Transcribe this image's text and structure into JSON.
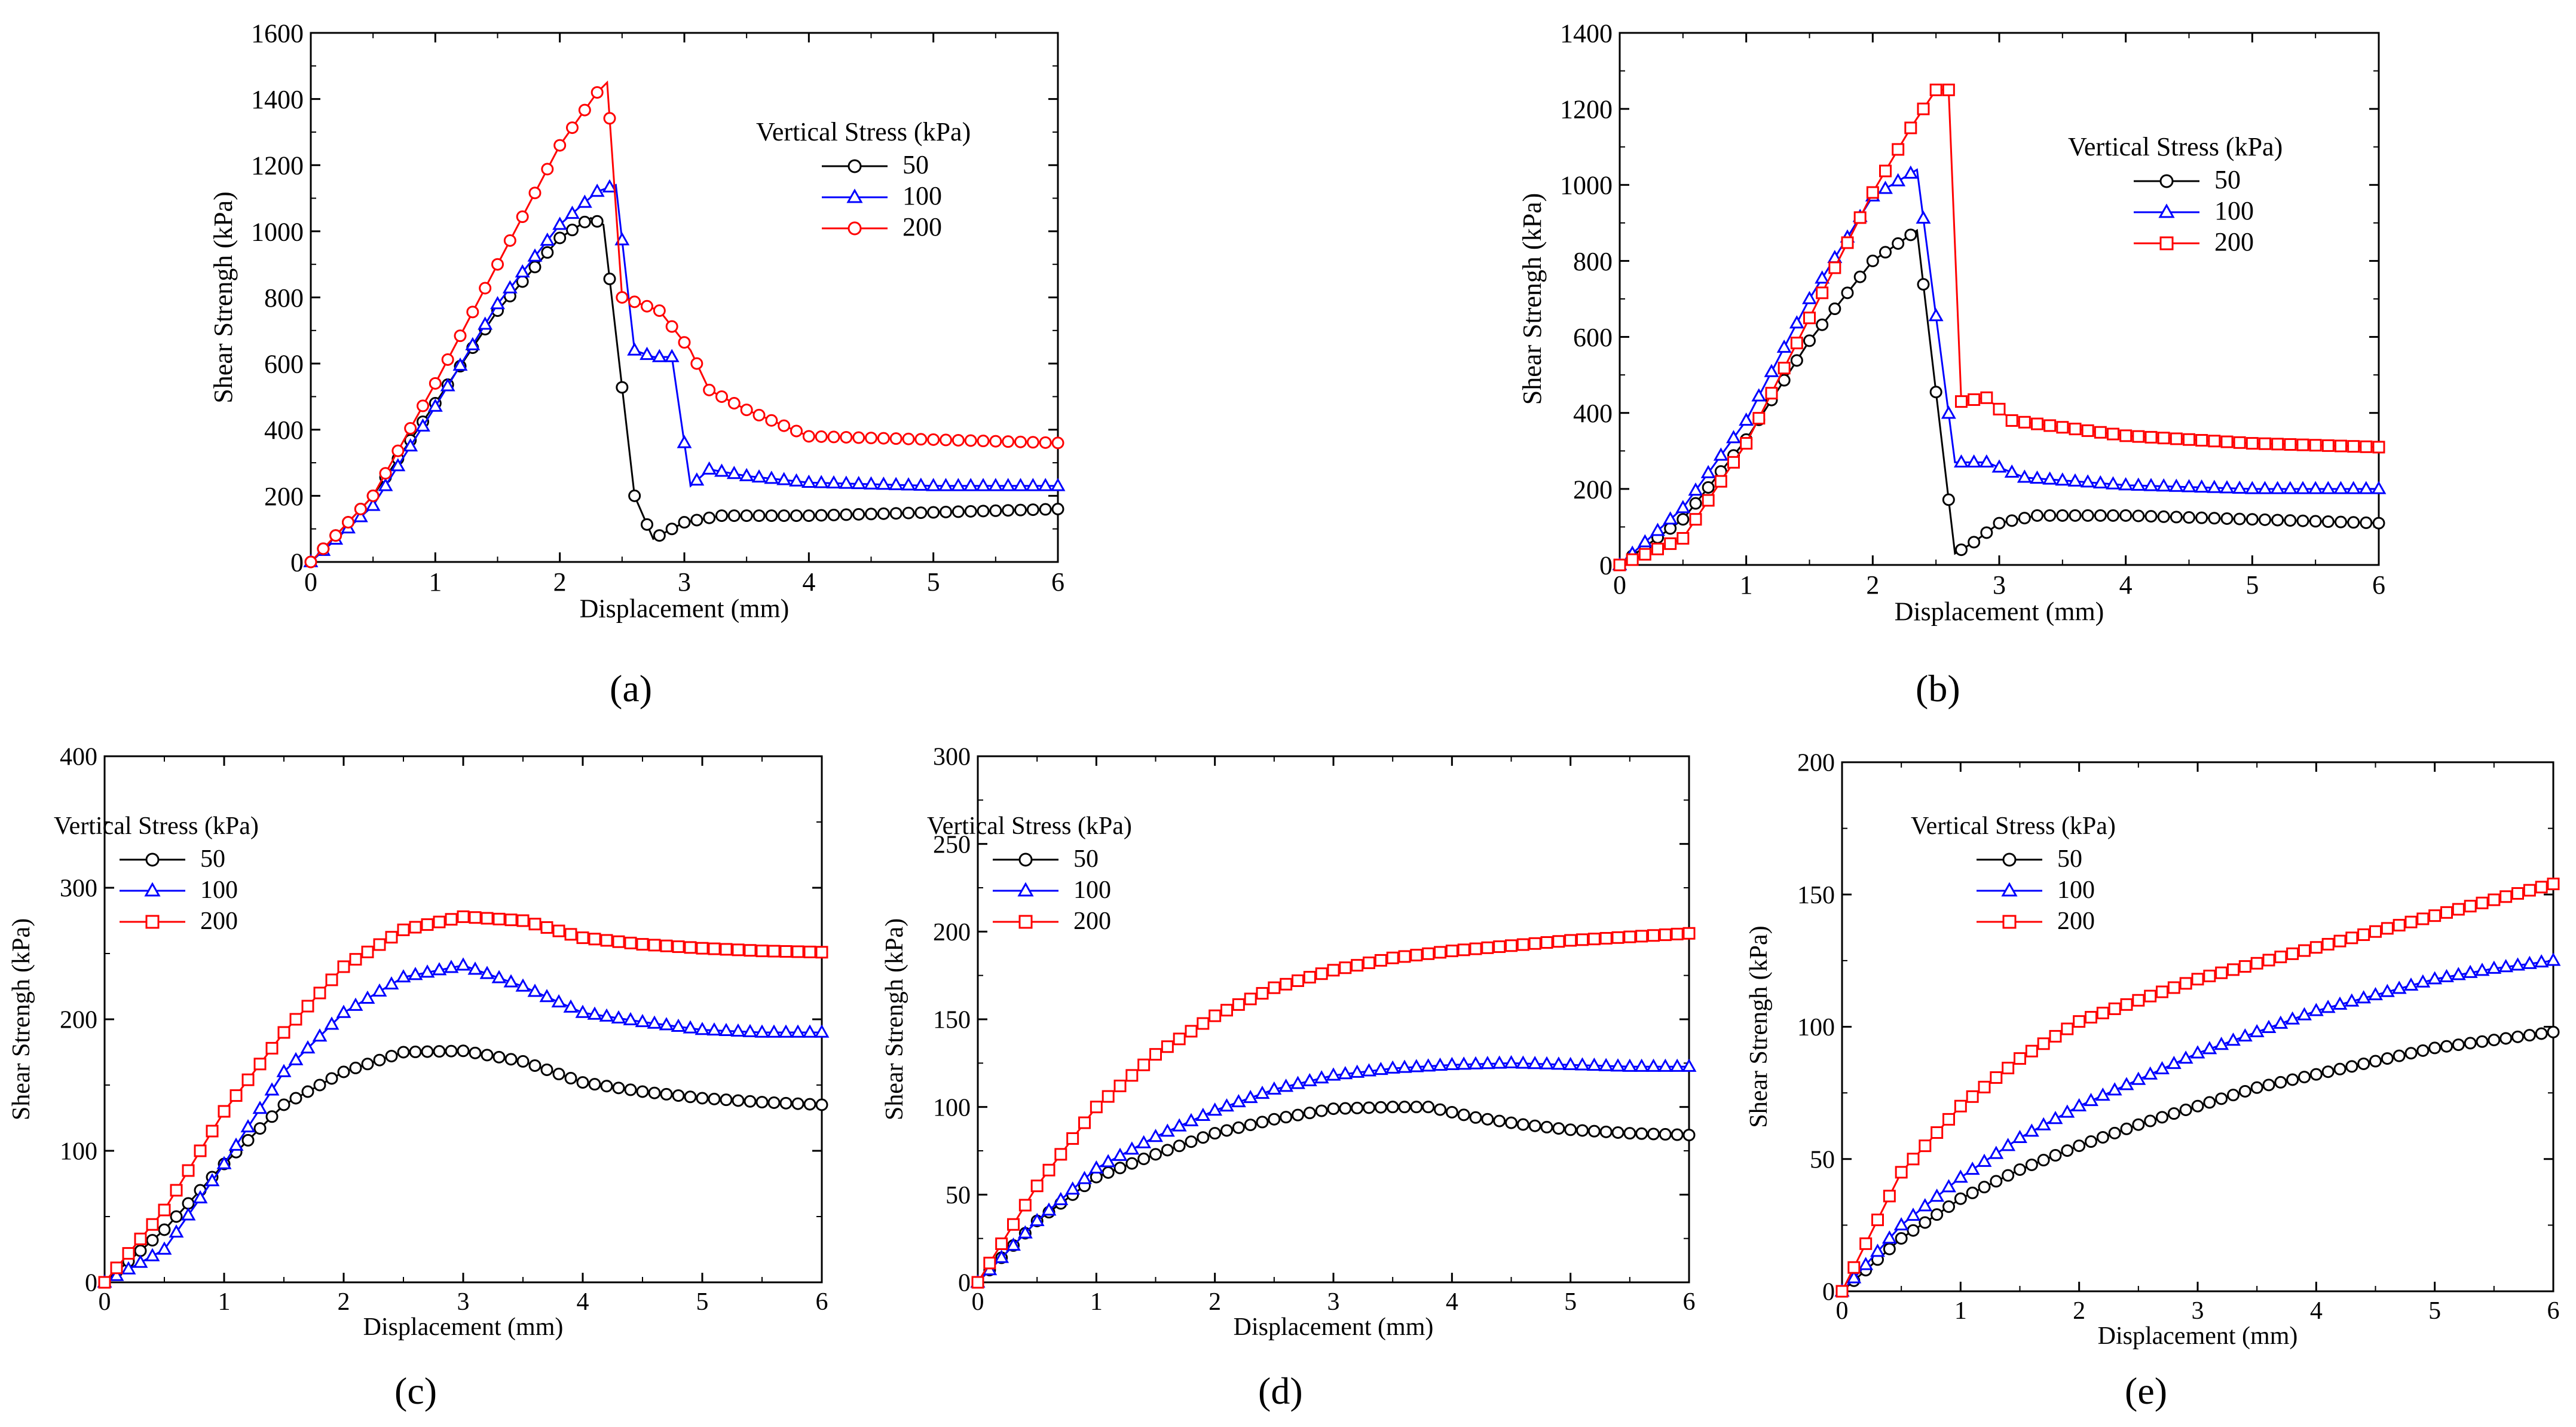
{
  "figure": {
    "panel_labels": [
      "(a)",
      "(b)",
      "(c)",
      "(d)",
      "(e)"
    ]
  },
  "colors": {
    "s50": "#000000",
    "s100": "#0000ff",
    "s200": "#ff0000"
  },
  "chart_data": [
    {
      "panel": "a",
      "type": "line",
      "xlabel": "Displacement (mm)",
      "ylabel": "Shear Strengh (kPa)",
      "xlim": [
        0,
        6
      ],
      "ylim": [
        0,
        1600
      ],
      "xticks": [
        0,
        1,
        2,
        3,
        4,
        5,
        6
      ],
      "yticks": [
        0,
        200,
        400,
        600,
        800,
        1000,
        1200,
        1400,
        1600
      ],
      "legend_title": "Vertical Stress (kPa)",
      "legend_position": "upper-right",
      "series": [
        {
          "name": "50",
          "marker": "circle",
          "color": "#000000",
          "x": [
            0,
            0.5,
            1,
            1.5,
            2,
            2.25,
            2.35,
            2.6,
            2.75,
            3.0,
            3.3,
            4,
            5,
            6
          ],
          "y": [
            0,
            200,
            480,
            760,
            980,
            1040,
            1020,
            200,
            70,
            120,
            140,
            140,
            150,
            160
          ]
        },
        {
          "name": "100",
          "marker": "triangle",
          "color": "#0000ff",
          "x": [
            0,
            0.5,
            1,
            1.5,
            2,
            2.3,
            2.45,
            2.6,
            2.75,
            2.9,
            3.05,
            3.2,
            3.5,
            4,
            5,
            6
          ],
          "y": [
            0,
            170,
            470,
            780,
            1020,
            1120,
            1140,
            640,
            620,
            620,
            230,
            280,
            260,
            240,
            230,
            230
          ]
        },
        {
          "name": "200",
          "marker": "circle",
          "color": "#ff0000",
          "x": [
            0,
            0.5,
            1,
            1.5,
            2,
            2.3,
            2.38,
            2.5,
            2.8,
            3.05,
            3.2,
            3.5,
            4,
            5,
            6
          ],
          "y": [
            0,
            200,
            540,
            900,
            1260,
            1420,
            1450,
            800,
            760,
            640,
            520,
            460,
            380,
            370,
            360
          ]
        }
      ]
    },
    {
      "panel": "b",
      "type": "line",
      "xlabel": "Displacement (mm)",
      "ylabel": "Shear Strengh (kPa)",
      "xlim": [
        0,
        6
      ],
      "ylim": [
        0,
        1400
      ],
      "xticks": [
        0,
        1,
        2,
        3,
        4,
        5,
        6
      ],
      "yticks": [
        0,
        200,
        400,
        600,
        800,
        1000,
        1200,
        1400
      ],
      "legend_title": "Vertical Stress (kPa)",
      "legend_position": "upper-right",
      "series": [
        {
          "name": "50",
          "marker": "circle",
          "color": "#000000",
          "x": [
            0,
            0.5,
            1,
            1.5,
            2,
            2.35,
            2.65,
            2.8,
            3.0,
            3.3,
            4,
            5,
            6
          ],
          "y": [
            0,
            120,
            330,
            590,
            800,
            880,
            30,
            60,
            110,
            130,
            130,
            120,
            110
          ]
        },
        {
          "name": "100",
          "marker": "triangle",
          "color": "#0000ff",
          "x": [
            0,
            0.5,
            1,
            1.5,
            2,
            2.35,
            2.65,
            2.9,
            3.2,
            4,
            5,
            6
          ],
          "y": [
            0,
            150,
            380,
            700,
            970,
            1040,
            270,
            270,
            230,
            210,
            200,
            200
          ]
        },
        {
          "name": "200",
          "marker": "square",
          "color": "#ff0000",
          "x": [
            0,
            0.5,
            1,
            1.5,
            2,
            2.3,
            2.5,
            2.6,
            2.7,
            2.9,
            3.1,
            4,
            5,
            6
          ],
          "y": [
            0,
            70,
            320,
            650,
            980,
            1150,
            1250,
            1250,
            430,
            440,
            380,
            340,
            320,
            310
          ]
        }
      ]
    },
    {
      "panel": "c",
      "type": "line",
      "xlabel": "Displacement (mm)",
      "ylabel": "Shear Strengh (kPa)",
      "xlim": [
        0,
        6
      ],
      "ylim": [
        0,
        400
      ],
      "xticks": [
        0,
        1,
        2,
        3,
        4,
        5,
        6
      ],
      "yticks": [
        0,
        100,
        200,
        300,
        400
      ],
      "legend_title": "Vertical Stress (kPa)",
      "legend_position": "upper-left",
      "series": [
        {
          "name": "50",
          "marker": "circle",
          "color": "#000000",
          "x": [
            0,
            0.5,
            1,
            1.5,
            2,
            2.5,
            3,
            3.5,
            4,
            4.5,
            5,
            5.5,
            6
          ],
          "y": [
            0,
            40,
            90,
            135,
            160,
            175,
            176,
            168,
            152,
            145,
            140,
            137,
            135
          ]
        },
        {
          "name": "100",
          "marker": "triangle",
          "color": "#0000ff",
          "x": [
            0,
            0.5,
            1,
            1.5,
            2,
            2.5,
            3,
            3.5,
            4,
            4.5,
            5,
            5.5,
            6
          ],
          "y": [
            0,
            25,
            90,
            160,
            205,
            232,
            241,
            225,
            205,
            198,
            192,
            190,
            190
          ]
        },
        {
          "name": "200",
          "marker": "square",
          "color": "#ff0000",
          "x": [
            0,
            0.5,
            1,
            1.5,
            2,
            2.5,
            3,
            3.5,
            4,
            4.5,
            5,
            5.5,
            6
          ],
          "y": [
            0,
            55,
            130,
            190,
            240,
            268,
            278,
            275,
            262,
            257,
            254,
            252,
            251
          ]
        }
      ]
    },
    {
      "panel": "d",
      "type": "line",
      "xlabel": "Displacement (mm)",
      "ylabel": "Shear Strengh (kPa)",
      "xlim": [
        0,
        6
      ],
      "ylim": [
        0,
        300
      ],
      "xticks": [
        0,
        1,
        2,
        3,
        4,
        5,
        6
      ],
      "yticks": [
        0,
        50,
        100,
        150,
        200,
        250,
        300
      ],
      "legend_title": "Vertical Stress (kPa)",
      "legend_position": "upper-left",
      "series": [
        {
          "name": "50",
          "marker": "circle",
          "color": "#000000",
          "x": [
            0,
            0.5,
            1,
            1.5,
            2,
            2.5,
            3,
            3.5,
            3.8,
            4.2,
            4.6,
            5,
            5.5,
            6
          ],
          "y": [
            0,
            35,
            60,
            73,
            85,
            93,
            99,
            100,
            100,
            94,
            90,
            87,
            85,
            84
          ]
        },
        {
          "name": "100",
          "marker": "triangle",
          "color": "#0000ff",
          "x": [
            0,
            0.5,
            1,
            1.5,
            2,
            2.5,
            3,
            3.5,
            4,
            4.5,
            5,
            5.5,
            6
          ],
          "y": [
            0,
            35,
            65,
            83,
            98,
            110,
            118,
            122,
            124,
            125,
            124,
            123,
            123
          ]
        },
        {
          "name": "200",
          "marker": "square",
          "color": "#ff0000",
          "x": [
            0,
            0.5,
            1,
            1.5,
            2,
            2.5,
            3,
            3.5,
            4,
            4.5,
            5,
            5.5,
            6
          ],
          "y": [
            0,
            55,
            100,
            130,
            152,
            168,
            178,
            185,
            189,
            192,
            195,
            197,
            199
          ]
        }
      ]
    },
    {
      "panel": "e",
      "type": "line",
      "xlabel": "Displacement (mm)",
      "ylabel": "Shear Strengh (kPa)",
      "xlim": [
        0,
        6
      ],
      "ylim": [
        0,
        200
      ],
      "xticks": [
        0,
        1,
        2,
        3,
        4,
        5,
        6
      ],
      "yticks": [
        0,
        50,
        100,
        150,
        200
      ],
      "legend_title": "Vertical Stress (kPa)",
      "legend_position": "upper-left",
      "series": [
        {
          "name": "50",
          "marker": "circle",
          "color": "#000000",
          "x": [
            0,
            0.5,
            1,
            1.5,
            2,
            2.5,
            3,
            3.5,
            4,
            4.5,
            5,
            5.5,
            6
          ],
          "y": [
            0,
            20,
            35,
            46,
            55,
            63,
            70,
            77,
            82,
            87,
            92,
            95,
            98
          ]
        },
        {
          "name": "100",
          "marker": "triangle",
          "color": "#0000ff",
          "x": [
            0,
            0.5,
            1,
            1.5,
            2,
            2.5,
            3,
            3.5,
            4,
            4.5,
            5,
            5.5,
            6
          ],
          "y": [
            0,
            25,
            43,
            58,
            70,
            80,
            90,
            98,
            106,
            112,
            118,
            122,
            125
          ]
        },
        {
          "name": "200",
          "marker": "square",
          "color": "#ff0000",
          "x": [
            0,
            0.5,
            1,
            1.5,
            2,
            2.5,
            3,
            3.5,
            4,
            4.5,
            5,
            5.5,
            6
          ],
          "y": [
            0,
            45,
            70,
            88,
            102,
            110,
            118,
            124,
            130,
            136,
            142,
            148,
            154
          ]
        }
      ]
    }
  ]
}
